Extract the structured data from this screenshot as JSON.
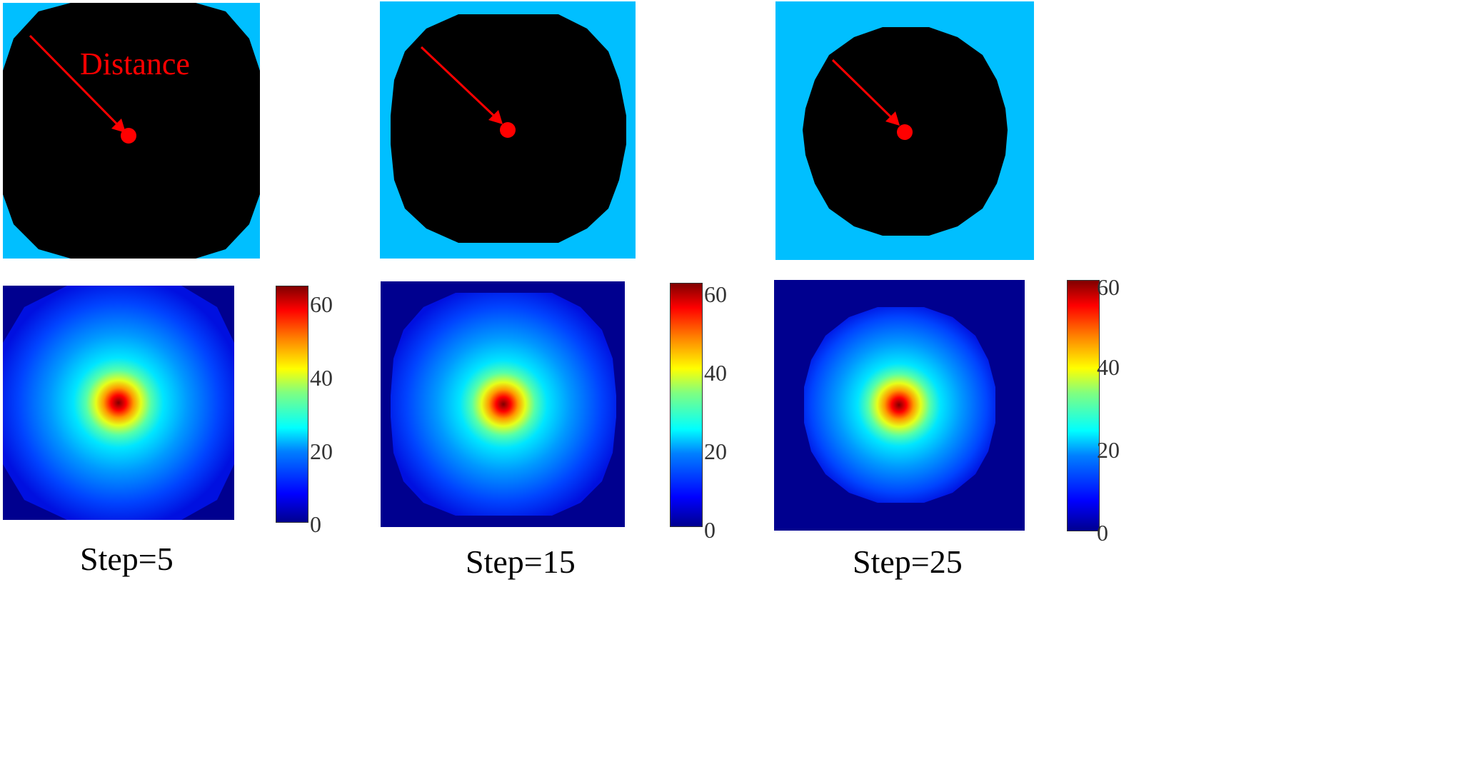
{
  "annotation": {
    "label": "Distance",
    "color": "#ff0000"
  },
  "colors": {
    "region_fill": "#000000",
    "background_fill": "#00bfff",
    "heatmap_outside": "#00008f",
    "colormap": "jet"
  },
  "panels": [
    {
      "step_label": "Step=5",
      "colorbar": {
        "ticks": [
          "0",
          "20",
          "40",
          "60"
        ],
        "max": 64
      }
    },
    {
      "step_label": "Step=15",
      "colorbar": {
        "ticks": [
          "0",
          "20",
          "40",
          "60"
        ],
        "max": 62
      }
    },
    {
      "step_label": "Step=25",
      "colorbar": {
        "ticks": [
          "0",
          "20",
          "40",
          "60"
        ],
        "max": 61
      }
    }
  ]
}
